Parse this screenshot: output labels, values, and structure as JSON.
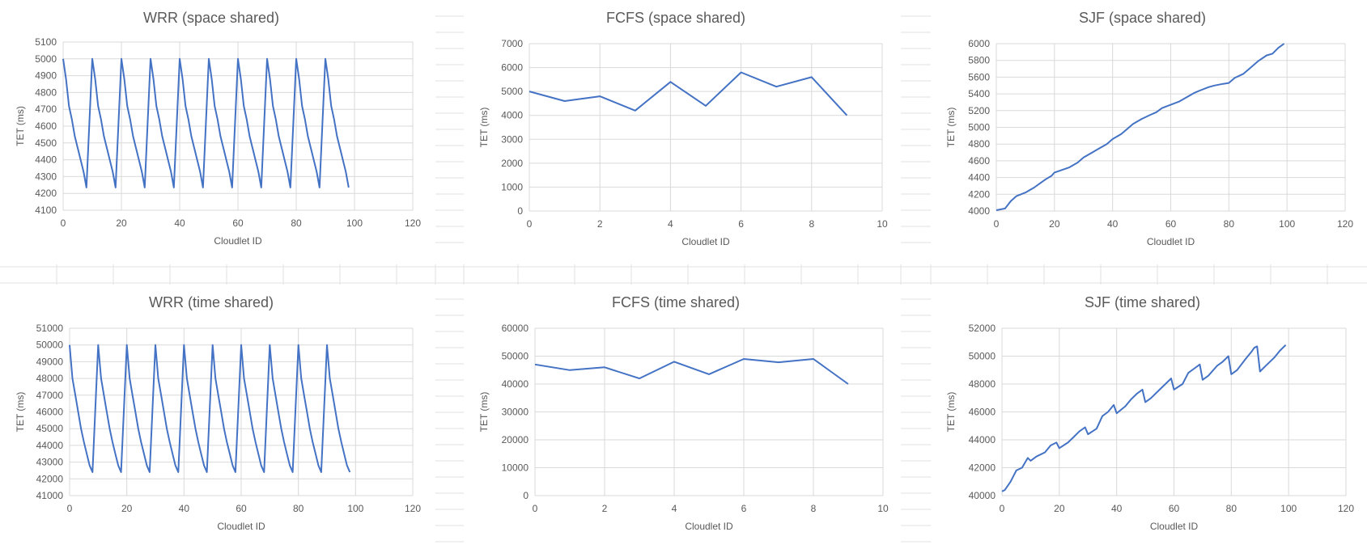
{
  "colors": {
    "series": "#4472c4",
    "grid": "#d9d9d9",
    "text": "#595959",
    "sheet_grid": "#e2e2e2",
    "background": "#ffffff"
  },
  "chart_data": [
    {
      "type": "line",
      "title": "WRR (space shared)",
      "xlabel": "Cloudlet ID",
      "ylabel": "TET (ms)",
      "xlim": [
        0,
        120
      ],
      "xticks": [
        0,
        20,
        40,
        60,
        80,
        100,
        120
      ],
      "ylim": [
        4100,
        5100
      ],
      "yticks": [
        4100,
        4200,
        4300,
        4400,
        4500,
        4600,
        4700,
        4800,
        4900,
        5000,
        5100
      ],
      "grid": true,
      "pattern": "sawtooth",
      "period": 10,
      "cycle_values": [
        5000,
        4880,
        4720,
        4640,
        4540,
        4470,
        4400,
        4330,
        4235
      ],
      "x_range": [
        0,
        99
      ]
    },
    {
      "type": "line",
      "title": "FCFS (space shared)",
      "xlabel": "Cloudlet ID",
      "ylabel": "TET (ms)",
      "xlim": [
        0,
        10
      ],
      "xticks": [
        0,
        2,
        4,
        6,
        8,
        10
      ],
      "ylim": [
        0,
        7000
      ],
      "yticks": [
        0,
        1000,
        2000,
        3000,
        4000,
        5000,
        6000,
        7000
      ],
      "grid": true,
      "x": [
        0,
        1,
        2,
        3,
        4,
        5,
        6,
        7,
        8,
        9
      ],
      "y": [
        5000,
        4600,
        4800,
        4200,
        5400,
        4400,
        5800,
        5200,
        5600,
        4000
      ]
    },
    {
      "type": "line",
      "title": "SJF (space shared)",
      "xlabel": "Cloudlet ID",
      "ylabel": "TET (ms)",
      "xlim": [
        0,
        120
      ],
      "xticks": [
        0,
        20,
        40,
        60,
        80,
        100,
        120
      ],
      "ylim": [
        4000,
        6000
      ],
      "yticks": [
        4000,
        4200,
        4400,
        4600,
        4800,
        5000,
        5200,
        5400,
        5600,
        5800,
        6000
      ],
      "grid": true,
      "x": [
        0,
        3,
        5,
        7,
        10,
        13,
        15,
        17,
        19,
        20,
        25,
        28,
        30,
        33,
        35,
        38,
        40,
        43,
        45,
        47,
        50,
        53,
        55,
        57,
        60,
        63,
        65,
        68,
        70,
        73,
        75,
        78,
        80,
        82,
        85,
        87,
        90,
        93,
        95,
        97,
        99
      ],
      "y": [
        4010,
        4030,
        4120,
        4180,
        4220,
        4280,
        4330,
        4380,
        4420,
        4460,
        4520,
        4580,
        4640,
        4700,
        4740,
        4800,
        4860,
        4920,
        4980,
        5040,
        5100,
        5150,
        5180,
        5230,
        5270,
        5310,
        5350,
        5410,
        5440,
        5480,
        5500,
        5520,
        5530,
        5590,
        5640,
        5700,
        5790,
        5860,
        5880,
        5950,
        6000
      ]
    },
    {
      "type": "line",
      "title": "WRR (time shared)",
      "xlabel": "Cloudlet ID",
      "ylabel": "TET (ms)",
      "xlim": [
        0,
        120
      ],
      "xticks": [
        0,
        20,
        40,
        60,
        80,
        100,
        120
      ],
      "ylim": [
        41000,
        51000
      ],
      "yticks": [
        41000,
        42000,
        43000,
        44000,
        45000,
        46000,
        47000,
        48000,
        49000,
        50000,
        51000
      ],
      "grid": true,
      "pattern": "sawtooth",
      "period": 10,
      "cycle_values": [
        50000,
        48000,
        47000,
        46000,
        45000,
        44200,
        43500,
        42800,
        42400
      ],
      "x_range": [
        0,
        99
      ]
    },
    {
      "type": "line",
      "title": "FCFS (time shared)",
      "xlabel": "Cloudlet ID",
      "ylabel": "TET (ms)",
      "xlim": [
        0,
        10
      ],
      "xticks": [
        0,
        2,
        4,
        6,
        8,
        10
      ],
      "ylim": [
        0,
        60000
      ],
      "yticks": [
        0,
        10000,
        20000,
        30000,
        40000,
        50000,
        60000
      ],
      "grid": true,
      "x": [
        0,
        1,
        2,
        3,
        4,
        5,
        6,
        7,
        8,
        9
      ],
      "y": [
        47000,
        45000,
        46000,
        42000,
        48000,
        43500,
        49000,
        47800,
        49000,
        40000
      ]
    },
    {
      "type": "line",
      "title": "SJF (time shared)",
      "xlabel": "Cloudlet ID",
      "ylabel": "TET (ms)",
      "xlim": [
        0,
        120
      ],
      "xticks": [
        0,
        20,
        40,
        60,
        80,
        100,
        120
      ],
      "ylim": [
        40000,
        52000
      ],
      "yticks": [
        40000,
        42000,
        44000,
        46000,
        48000,
        50000,
        52000
      ],
      "grid": true,
      "x": [
        0,
        1,
        3,
        5,
        7,
        9,
        10,
        12,
        15,
        17,
        19,
        20,
        23,
        25,
        27,
        29,
        30,
        33,
        35,
        37,
        39,
        40,
        43,
        45,
        47,
        49,
        50,
        52,
        55,
        57,
        59,
        60,
        63,
        65,
        67,
        69,
        70,
        72,
        75,
        77,
        79,
        80,
        82,
        85,
        87,
        88,
        89,
        90,
        92,
        95,
        97,
        99
      ],
      "y": [
        40300,
        40400,
        41000,
        41800,
        42000,
        42700,
        42500,
        42800,
        43100,
        43600,
        43800,
        43400,
        43800,
        44200,
        44600,
        44900,
        44400,
        44800,
        45700,
        46000,
        46500,
        45900,
        46400,
        46900,
        47300,
        47600,
        46700,
        47000,
        47600,
        48000,
        48400,
        47600,
        48000,
        48800,
        49100,
        49400,
        48300,
        48600,
        49300,
        49600,
        50000,
        48700,
        49000,
        49800,
        50300,
        50600,
        50700,
        48900,
        49300,
        49900,
        50400,
        50800
      ]
    }
  ]
}
